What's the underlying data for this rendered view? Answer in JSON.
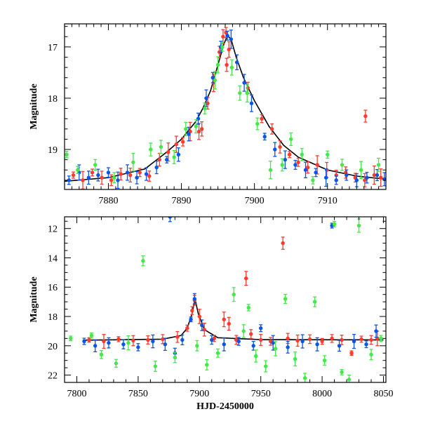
{
  "colors": {
    "red": "#ff3b2f",
    "blue": "#0a55e8",
    "green": "#44e84a",
    "model": "#000000"
  },
  "chart_data": [
    {
      "type": "scatter",
      "title": "",
      "xlabel": "",
      "ylabel": "Magnitude",
      "xlim": [
        7874,
        7918
      ],
      "ylim": [
        19.78,
        16.55
      ],
      "y_inverted": true,
      "x_ticks": [
        7880,
        7890,
        7900,
        7910
      ],
      "y_ticks": [
        17,
        18,
        19
      ],
      "model_curve": {
        "description_points": [
          [
            7874,
            19.62
          ],
          [
            7880,
            19.55
          ],
          [
            7885,
            19.38
          ],
          [
            7888,
            19.05
          ],
          [
            7890,
            18.8
          ],
          [
            7892,
            18.45
          ],
          [
            7893,
            18.18
          ],
          [
            7894,
            17.85
          ],
          [
            7895,
            17.35
          ],
          [
            7895.8,
            16.95
          ],
          [
            7896.3,
            16.78
          ],
          [
            7896.8,
            16.85
          ],
          [
            7897.5,
            17.2
          ],
          [
            7898.5,
            17.6
          ],
          [
            7900,
            18.05
          ],
          [
            7902,
            18.55
          ],
          [
            7904,
            18.92
          ],
          [
            7906,
            19.15
          ],
          [
            7910,
            19.4
          ],
          [
            7914,
            19.52
          ],
          [
            7918,
            19.58
          ]
        ]
      },
      "series": [
        {
          "color": "red",
          "points": [
            [
              7875.2,
              19.5
            ],
            [
              7876.5,
              19.6
            ],
            [
              7877.8,
              19.45
            ],
            [
              7879.1,
              19.55
            ],
            [
              7880.4,
              19.6
            ],
            [
              7881.7,
              19.48
            ],
            [
              7883.0,
              19.5
            ],
            [
              7884.3,
              19.45
            ],
            [
              7885.6,
              19.52
            ],
            [
              7887.0,
              19.2
            ],
            [
              7888.2,
              19.05
            ],
            [
              7889.3,
              18.9
            ],
            [
              7890.2,
              18.85
            ],
            [
              7891.2,
              18.65
            ],
            [
              7892.4,
              18.65
            ],
            [
              7893.6,
              18.1
            ],
            [
              7894.4,
              17.7
            ],
            [
              7895.2,
              17.1
            ],
            [
              7895.7,
              16.8
            ],
            [
              7896.1,
              16.72
            ],
            [
              7896.5,
              17.05
            ],
            [
              7896.2,
              17.35
            ],
            [
              7892.8,
              18.6
            ],
            [
              7899.1,
              17.8
            ],
            [
              7901.0,
              18.4
            ],
            [
              7902.4,
              18.6
            ],
            [
              7903.5,
              18.95
            ],
            [
              7904.8,
              19.1
            ],
            [
              7906.0,
              19.25
            ],
            [
              7907.3,
              19.35
            ],
            [
              7908.6,
              19.3
            ],
            [
              7909.9,
              19.4
            ],
            [
              7911.2,
              19.5
            ],
            [
              7912.5,
              19.45
            ],
            [
              7913.8,
              19.55
            ],
            [
              7915.1,
              19.6
            ],
            [
              7916.4,
              19.5
            ],
            [
              7917.3,
              19.55
            ],
            [
              7915.2,
              18.35
            ]
          ]
        },
        {
          "color": "blue",
          "points": [
            [
              7874.6,
              19.6
            ],
            [
              7876.0,
              19.45
            ],
            [
              7877.3,
              19.55
            ],
            [
              7878.6,
              19.5
            ],
            [
              7880.0,
              19.45
            ],
            [
              7881.3,
              19.6
            ],
            [
              7882.6,
              19.45
            ],
            [
              7883.9,
              19.55
            ],
            [
              7885.2,
              19.48
            ],
            [
              7886.6,
              19.35
            ],
            [
              7888.0,
              19.2
            ],
            [
              7889.6,
              19.1
            ],
            [
              7891.0,
              18.7
            ],
            [
              7892.3,
              18.4
            ],
            [
              7893.4,
              18.0
            ],
            [
              7894.3,
              17.6
            ],
            [
              7895.4,
              17.0
            ],
            [
              7896.3,
              16.78
            ],
            [
              7896.8,
              16.85
            ],
            [
              7897.6,
              17.3
            ],
            [
              7898.6,
              17.7
            ],
            [
              7899.6,
              18.1
            ],
            [
              7901.4,
              18.75
            ],
            [
              7902.8,
              19.0
            ],
            [
              7904.2,
              19.2
            ],
            [
              7905.6,
              19.3
            ],
            [
              7907.0,
              19.4
            ],
            [
              7908.4,
              19.45
            ],
            [
              7909.8,
              19.55
            ],
            [
              7911.2,
              19.6
            ],
            [
              7912.6,
              19.5
            ],
            [
              7914.0,
              19.6
            ],
            [
              7915.4,
              19.55
            ],
            [
              7916.8,
              19.5
            ],
            [
              7917.8,
              19.58
            ]
          ]
        },
        {
          "color": "green",
          "points": [
            [
              7874.3,
              19.1
            ],
            [
              7875.8,
              19.4
            ],
            [
              7878.2,
              19.3
            ],
            [
              7880.8,
              19.55
            ],
            [
              7883.4,
              19.25
            ],
            [
              7885.8,
              19.0
            ],
            [
              7887.2,
              18.95
            ],
            [
              7889.0,
              19.15
            ],
            [
              7890.6,
              18.6
            ],
            [
              7892.0,
              18.55
            ],
            [
              7893.2,
              18.2
            ],
            [
              7894.6,
              17.65
            ],
            [
              7895.0,
              17.35
            ],
            [
              7895.6,
              17.0
            ],
            [
              7896.9,
              17.4
            ],
            [
              7898.0,
              17.9
            ],
            [
              7899.0,
              17.9
            ],
            [
              7900.4,
              18.5
            ],
            [
              7902.2,
              19.4
            ],
            [
              7903.8,
              19.3
            ],
            [
              7905.0,
              18.8
            ],
            [
              7906.5,
              19.1
            ],
            [
              7908.0,
              19.6
            ],
            [
              7910.0,
              19.1
            ],
            [
              7912.0,
              19.3
            ],
            [
              7914.6,
              19.4
            ],
            [
              7917.0,
              19.3
            ]
          ]
        }
      ]
    },
    {
      "type": "scatter",
      "title": "",
      "xlabel": "HJD-2450000",
      "ylabel": "Magnitude",
      "xlim": [
        7790,
        8052
      ],
      "ylim": [
        22.5,
        11.2
      ],
      "y_inverted": true,
      "x_ticks": [
        7800,
        7850,
        7900,
        7950,
        8000,
        8050
      ],
      "y_ticks": [
        12,
        14,
        16,
        18,
        20,
        22
      ],
      "model_curve": {
        "description_points": [
          [
            7805,
            19.62
          ],
          [
            7870,
            19.55
          ],
          [
            7885,
            19.3
          ],
          [
            7890,
            18.8
          ],
          [
            7894,
            17.8
          ],
          [
            7896.3,
            16.78
          ],
          [
            7899,
            17.8
          ],
          [
            7904,
            18.9
          ],
          [
            7915,
            19.45
          ],
          [
            7950,
            19.58
          ],
          [
            8050,
            19.6
          ]
        ]
      },
      "series": [
        {
          "color": "red",
          "points": [
            [
              7810,
              19.6
            ],
            [
              7822,
              19.7
            ],
            [
              7834,
              19.55
            ],
            [
              7846,
              19.65
            ],
            [
              7858,
              19.6
            ],
            [
              7870,
              19.55
            ],
            [
              7882,
              19.4
            ],
            [
              7890,
              18.8
            ],
            [
              7894,
              17.6
            ],
            [
              7896,
              16.9
            ],
            [
              7900,
              18.0
            ],
            [
              7904,
              18.9
            ],
            [
              7912,
              19.5
            ],
            [
              7920,
              18.2
            ],
            [
              7924,
              18.5
            ],
            [
              7930,
              19.6
            ],
            [
              7938,
              15.4
            ],
            [
              7942,
              19.2
            ],
            [
              7950,
              19.6
            ],
            [
              7958,
              19.7
            ],
            [
              7968,
              13.0
            ],
            [
              7972,
              19.5
            ],
            [
              7980,
              19.65
            ],
            [
              7990,
              19.55
            ],
            [
              8000,
              19.7
            ],
            [
              8008,
              19.5
            ],
            [
              8016,
              19.6
            ],
            [
              8024,
              20.5
            ],
            [
              8032,
              19.55
            ],
            [
              8040,
              19.6
            ],
            [
              8045,
              19.5
            ]
          ]
        },
        {
          "color": "blue",
          "points": [
            [
              7806,
              19.7
            ],
            [
              7815,
              20.0
            ],
            [
              7826,
              19.8
            ],
            [
              7838,
              19.9
            ],
            [
              7850,
              20.1
            ],
            [
              7862,
              19.7
            ],
            [
              7872,
              19.9
            ],
            [
              7876,
              11.2
            ],
            [
              7880,
              20.5
            ],
            [
              7886,
              19.6
            ],
            [
              7893,
              18.2
            ],
            [
              7896,
              16.8
            ],
            [
              7902,
              18.6
            ],
            [
              7910,
              19.6
            ],
            [
              7920,
              19.9
            ],
            [
              7932,
              19.7
            ],
            [
              7944,
              20.0
            ],
            [
              7950,
              18.8
            ],
            [
              7960,
              19.8
            ],
            [
              7972,
              20.1
            ],
            [
              7984,
              19.7
            ],
            [
              7996,
              19.9
            ],
            [
              8008,
              11.8
            ],
            [
              8014,
              20.0
            ],
            [
              8026,
              19.7
            ],
            [
              8036,
              19.9
            ],
            [
              8044,
              19.0
            ]
          ]
        },
        {
          "color": "green",
          "points": [
            [
              7795,
              19.5
            ],
            [
              7812,
              19.3
            ],
            [
              7820,
              20.6
            ],
            [
              7832,
              21.2
            ],
            [
              7842,
              19.8
            ],
            [
              7854,
              14.2
            ],
            [
              7864,
              21.4
            ],
            [
              7880,
              20.8
            ],
            [
              7898,
              20.0
            ],
            [
              7906,
              21.3
            ],
            [
              7915,
              20.5
            ],
            [
              7928,
              16.5
            ],
            [
              7936,
              19.0
            ],
            [
              7940,
              17.4
            ],
            [
              7946,
              20.7
            ],
            [
              7954,
              21.4
            ],
            [
              7962,
              20.2
            ],
            [
              7970,
              16.8
            ],
            [
              7978,
              20.9
            ],
            [
              7986,
              22.2
            ],
            [
              7994,
              17.0
            ],
            [
              8002,
              21.0
            ],
            [
              8010,
              11.7
            ],
            [
              8016,
              21.8
            ],
            [
              8022,
              22.3
            ],
            [
              8030,
              11.8
            ],
            [
              8040,
              20.6
            ],
            [
              8048,
              19.5
            ]
          ]
        }
      ]
    }
  ]
}
